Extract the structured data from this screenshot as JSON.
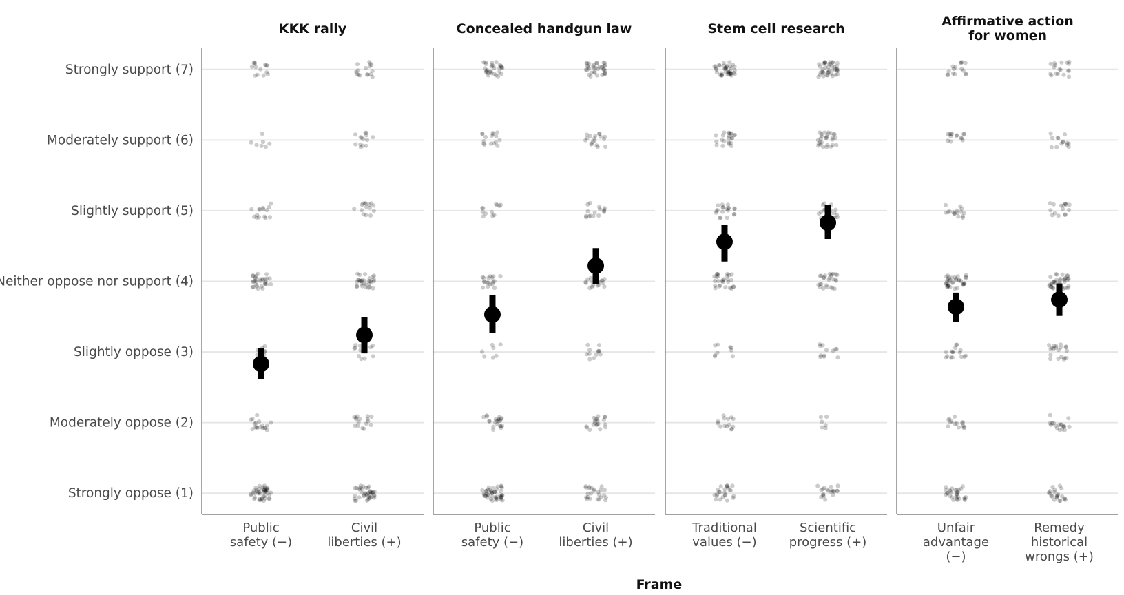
{
  "chart_data": {
    "type": "scatter",
    "xlabel": "Frame",
    "ylabel": "",
    "ylim": [
      0.7,
      7.3
    ],
    "y_levels": [
      {
        "value": 7,
        "label": "Strongly support (7)"
      },
      {
        "value": 6,
        "label": "Moderately support (6)"
      },
      {
        "value": 5,
        "label": "Slightly support (5)"
      },
      {
        "value": 4,
        "label": "Neither oppose nor support (4)"
      },
      {
        "value": 3,
        "label": "Slightly oppose (3)"
      },
      {
        "value": 2,
        "label": "Moderately oppose (2)"
      },
      {
        "value": 1,
        "label": "Strongly oppose (1)"
      }
    ],
    "grid": true,
    "point_color": "#000000",
    "panels": [
      {
        "title": [
          "KKK rally"
        ],
        "frames": [
          {
            "label": [
              "Public",
              "safety (−)"
            ],
            "mean": 2.83,
            "ci": [
              2.62,
              3.05
            ],
            "counts": {
              "7": 14,
              "6": 7,
              "5": 15,
              "4": 30,
              "3": 8,
              "2": 18,
              "1": 45
            }
          },
          {
            "label": [
              "Civil",
              "liberties (+)"
            ],
            "mean": 3.24,
            "ci": [
              2.98,
              3.49
            ],
            "counts": {
              "7": 16,
              "6": 14,
              "5": 15,
              "4": 30,
              "3": 12,
              "2": 16,
              "1": 40
            }
          }
        ]
      },
      {
        "title": [
          "Concealed handgun law"
        ],
        "frames": [
          {
            "label": [
              "Public",
              "safety (−)"
            ],
            "mean": 3.53,
            "ci": [
              3.27,
              3.8
            ],
            "counts": {
              "7": 30,
              "6": 16,
              "5": 12,
              "4": 18,
              "3": 7,
              "2": 22,
              "1": 45
            }
          },
          {
            "label": [
              "Civil",
              "liberties (+)"
            ],
            "mean": 4.22,
            "ci": [
              3.96,
              4.47
            ],
            "counts": {
              "7": 35,
              "6": 18,
              "5": 16,
              "4": 22,
              "3": 12,
              "2": 20,
              "1": 24
            }
          }
        ]
      },
      {
        "title": [
          "Stem cell research"
        ],
        "frames": [
          {
            "label": [
              "Traditional",
              "values (−)"
            ],
            "mean": 4.56,
            "ci": [
              4.28,
              4.8
            ],
            "counts": {
              "7": 40,
              "6": 22,
              "5": 20,
              "4": 28,
              "3": 9,
              "2": 14,
              "1": 24
            }
          },
          {
            "label": [
              "Scientific",
              "progress (+)"
            ],
            "mean": 4.83,
            "ci": [
              4.6,
              5.08
            ],
            "counts": {
              "7": 42,
              "6": 28,
              "5": 16,
              "4": 26,
              "3": 12,
              "2": 6,
              "1": 20
            }
          }
        ]
      },
      {
        "title": [
          "Affirmative action",
          "for women"
        ],
        "frames": [
          {
            "label": [
              "Unfair",
              "advantage",
              "(−)"
            ],
            "mean": 3.64,
            "ci": [
              3.42,
              3.84
            ],
            "counts": {
              "7": 16,
              "6": 14,
              "5": 16,
              "4": 36,
              "3": 16,
              "2": 14,
              "1": 30
            }
          },
          {
            "label": [
              "Remedy",
              "historical",
              "wrongs (+)"
            ],
            "mean": 3.74,
            "ci": [
              3.51,
              3.97
            ],
            "counts": {
              "7": 18,
              "6": 14,
              "5": 16,
              "4": 36,
              "3": 20,
              "2": 18,
              "1": 22
            }
          }
        ]
      }
    ]
  }
}
